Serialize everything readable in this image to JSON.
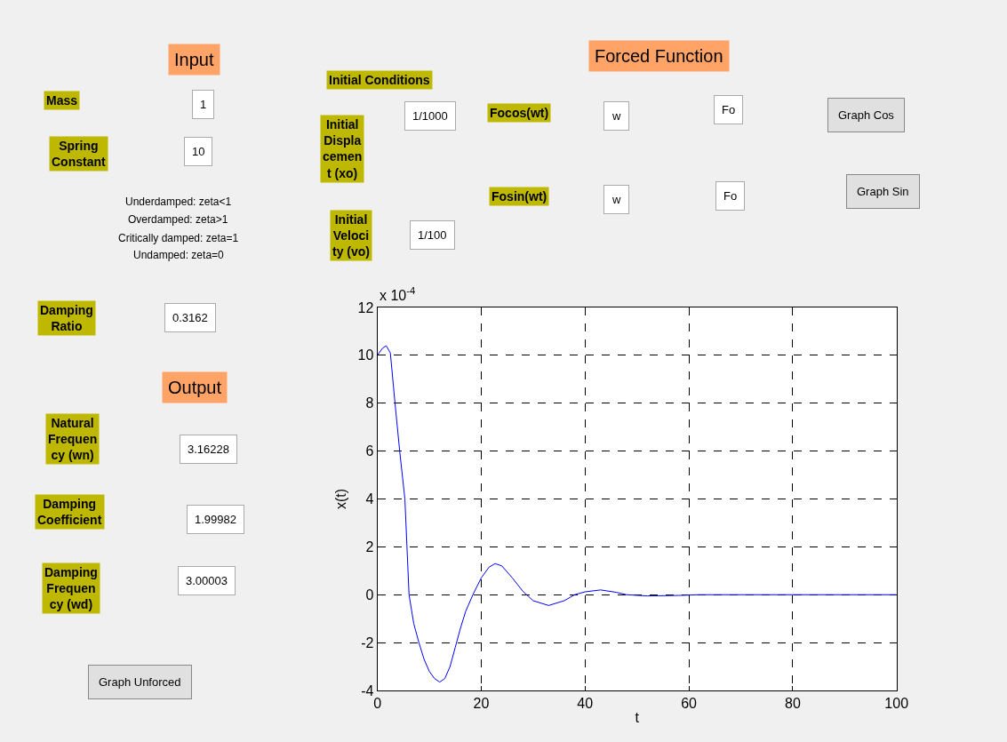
{
  "chart_data": [
    {
      "type": "line",
      "xlabel": "t",
      "ylabel": "x(t)",
      "annotations": [
        "x 10$^{-4}$"
      ],
      "x": [
        0,
        1,
        1.7,
        2.5,
        3.4,
        4.3,
        5.3,
        6.1,
        7,
        8,
        9,
        10,
        11,
        12,
        13,
        14,
        15,
        16,
        17,
        18.4,
        20,
        21.5,
        22.7,
        24,
        26,
        28,
        30,
        33,
        36,
        38,
        40,
        43,
        46,
        48,
        52,
        58,
        62,
        100
      ],
      "series": [
        {
          "color": "#0000ff",
          "values": [
            10,
            10.3,
            10.4,
            10.1,
            8,
            6,
            4,
            0,
            -1.2,
            -2,
            -2.7,
            -3.2,
            -3.5,
            -3.65,
            -3.5,
            -3,
            -2.2,
            -1.4,
            -0.7,
            0,
            0.7,
            1.15,
            1.3,
            1.2,
            0.7,
            0.15,
            -0.25,
            -0.45,
            -0.25,
            0,
            0.12,
            0.2,
            0.1,
            0,
            -0.05,
            -0.03,
            0,
            0
          ]
        }
      ],
      "xlim": [
        0,
        100
      ],
      "xticks": [
        0,
        20,
        40,
        60,
        80,
        100
      ],
      "ylim": [
        -4,
        12
      ],
      "yticks": [
        -4,
        -2,
        0,
        2,
        4,
        6,
        8,
        10,
        12
      ],
      "grid": true,
      "line_style": "solid",
      "marker": "none"
    },
    {
      "type": "other",
      "annotations": [
        "Input",
        "Mass",
        "1",
        "Spring\nConstant",
        "10",
        "Underdamped: zeta<1",
        "Overdamped: zeta>1",
        "Critically damped: zeta=1",
        "Undamped: zeta=0",
        "Damping\nRatio",
        "0.3162",
        "Output",
        "Natural\nFrequen\ncy (wn)",
        "3.16228",
        "Damping\nCoefficient",
        "1.99982",
        "Damping\nFrequen\ncy (wd)",
        "3.00003",
        "Graph Unforced",
        "Initial Conditions",
        "Initial\nDispla\ncemen\nt (xo)",
        "1/1000",
        "Initial\nVeloci\nty (vo)",
        "1/100",
        "Forced Function",
        "Focos(wt)",
        "w",
        "Fo",
        "Graph Cos",
        "Fosin(wt)",
        "w",
        "Fo",
        "Graph Sin"
      ]
    }
  ]
}
